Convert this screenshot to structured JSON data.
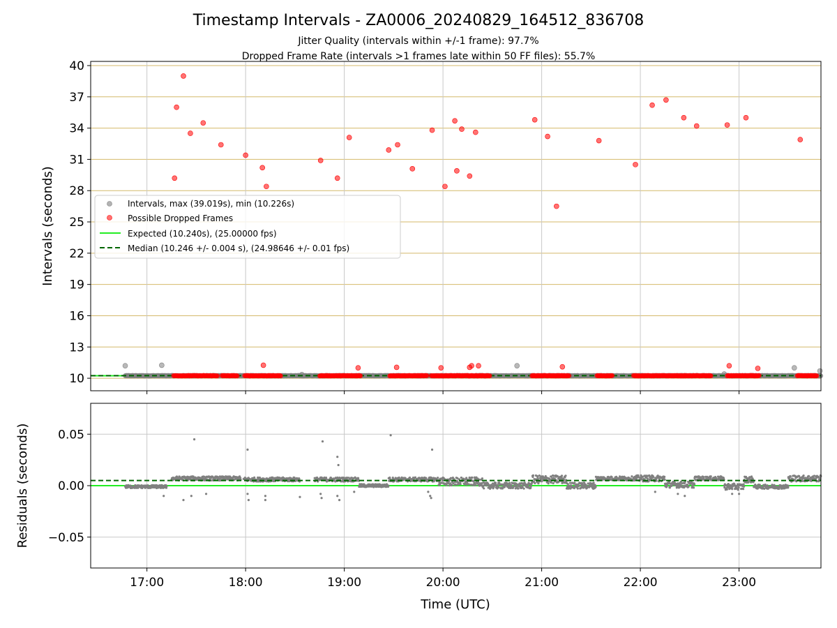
{
  "title": "Timestamp Intervals - ZA0006_20240829_164512_836708",
  "subtitle_lines": [
    "Jitter Quality (intervals within +/-1 frame): 97.7%",
    "Dropped Frame Rate (intervals >1 frames late within 50 FF files): 55.7%"
  ],
  "x_ticks": [
    "17:00",
    "18:00",
    "19:00",
    "20:00",
    "21:00",
    "22:00",
    "23:00"
  ],
  "x_range_hours": [
    16.43,
    23.83
  ],
  "xlabel": "Time (UTC)",
  "colors": {
    "intervals": "#808080",
    "dropped": "#ff0000",
    "expected": "#22ee22",
    "median": "#006400",
    "hgrid_top": "#d4b96a",
    "grid": "#c8c8c8"
  },
  "chart_data": [
    {
      "type": "scatter",
      "panel": "top",
      "ylabel": "Intervals (seconds)",
      "ylim": [
        8.8,
        40.4
      ],
      "y_ticks": [
        10,
        13,
        16,
        19,
        22,
        25,
        28,
        31,
        34,
        37,
        40
      ],
      "legend_placement": "center-left",
      "legend": [
        "Intervals, max (39.019s), min (10.226s)",
        "Possible Dropped Frames",
        "Expected (10.240s), (25.00000 fps)",
        "Median (10.246 +/- 0.004 s), (24.98646 +/- 0.01 fps)"
      ],
      "expected_value": 10.24,
      "median_value": 10.246,
      "baseline_interval": 10.24,
      "interval_outliers": [
        [
          16.78,
          11.2
        ],
        [
          17.15,
          11.25
        ],
        [
          18.57,
          10.35
        ],
        [
          20.75,
          11.2
        ],
        [
          22.85,
          10.4
        ],
        [
          23.56,
          11.0
        ],
        [
          23.82,
          10.7
        ]
      ],
      "dropped_points": [
        [
          17.28,
          29.2
        ],
        [
          17.3,
          36.0
        ],
        [
          17.37,
          39.0
        ],
        [
          17.44,
          33.5
        ],
        [
          17.57,
          34.5
        ],
        [
          17.75,
          32.4
        ],
        [
          18.0,
          31.4
        ],
        [
          18.17,
          30.2
        ],
        [
          18.21,
          28.4
        ],
        [
          18.18,
          11.25
        ],
        [
          18.76,
          30.9
        ],
        [
          18.93,
          29.2
        ],
        [
          19.05,
          33.1
        ],
        [
          19.14,
          11.0
        ],
        [
          19.45,
          31.9
        ],
        [
          19.54,
          32.4
        ],
        [
          19.53,
          11.05
        ],
        [
          19.69,
          30.1
        ],
        [
          19.89,
          33.8
        ],
        [
          19.98,
          11.0
        ],
        [
          20.02,
          28.4
        ],
        [
          20.12,
          34.7
        ],
        [
          20.14,
          29.9
        ],
        [
          20.19,
          33.9
        ],
        [
          20.27,
          29.4
        ],
        [
          20.27,
          11.05
        ],
        [
          20.29,
          11.2
        ],
        [
          20.33,
          33.6
        ],
        [
          20.36,
          11.2
        ],
        [
          20.93,
          34.8
        ],
        [
          21.06,
          33.2
        ],
        [
          21.15,
          26.5
        ],
        [
          21.21,
          11.1
        ],
        [
          21.58,
          32.8
        ],
        [
          21.95,
          30.5
        ],
        [
          22.12,
          36.2
        ],
        [
          22.26,
          36.7
        ],
        [
          22.44,
          35.0
        ],
        [
          22.57,
          34.2
        ],
        [
          22.88,
          34.3
        ],
        [
          22.9,
          11.2
        ],
        [
          23.07,
          35.0
        ],
        [
          23.19,
          10.95
        ],
        [
          23.62,
          32.9
        ]
      ],
      "dropped_baseline_ranges": [
        [
          17.27,
          17.72
        ],
        [
          17.76,
          17.92
        ],
        [
          17.99,
          18.36
        ],
        [
          18.75,
          19.17
        ],
        [
          19.46,
          19.84
        ],
        [
          19.88,
          20.48
        ],
        [
          20.9,
          21.28
        ],
        [
          21.56,
          21.72
        ],
        [
          21.93,
          22.72
        ],
        [
          22.88,
          23.21
        ],
        [
          23.59,
          23.79
        ]
      ]
    },
    {
      "type": "scatter",
      "panel": "bottom",
      "ylabel": "Residuals (seconds)",
      "ylim": [
        -0.08,
        0.08
      ],
      "y_ticks": [
        0.05,
        0.0,
        -0.05
      ],
      "y_tick_labels": [
        "0.05",
        "0.00",
        "−0.05"
      ],
      "expected_value": 0.0,
      "median_value": 0.005,
      "segments": [
        {
          "x": [
            16.78,
            17.2
          ],
          "level": -0.001,
          "spread": 0.0015
        },
        {
          "x": [
            17.25,
            17.95
          ],
          "level": 0.007,
          "spread": 0.002
        },
        {
          "x": [
            17.98,
            18.55
          ],
          "level": 0.006,
          "spread": 0.002
        },
        {
          "x": [
            18.7,
            19.15
          ],
          "level": 0.006,
          "spread": 0.002
        },
        {
          "x": [
            19.15,
            19.45
          ],
          "level": 0.0,
          "spread": 0.0015
        },
        {
          "x": [
            19.45,
            19.95
          ],
          "level": 0.006,
          "spread": 0.002
        },
        {
          "x": [
            19.95,
            20.4
          ],
          "level": 0.004,
          "spread": 0.004
        },
        {
          "x": [
            20.4,
            20.9
          ],
          "level": 0.0,
          "spread": 0.003
        },
        {
          "x": [
            20.9,
            21.25
          ],
          "level": 0.006,
          "spread": 0.004
        },
        {
          "x": [
            21.25,
            21.55
          ],
          "level": 0.0,
          "spread": 0.003
        },
        {
          "x": [
            21.55,
            21.95
          ],
          "level": 0.007,
          "spread": 0.002
        },
        {
          "x": [
            21.95,
            22.25
          ],
          "level": 0.007,
          "spread": 0.003
        },
        {
          "x": [
            22.25,
            22.55
          ],
          "level": 0.001,
          "spread": 0.003
        },
        {
          "x": [
            22.55,
            22.85
          ],
          "level": 0.007,
          "spread": 0.002
        },
        {
          "x": [
            22.85,
            23.05
          ],
          "level": -0.001,
          "spread": 0.003
        },
        {
          "x": [
            23.05,
            23.15
          ],
          "level": 0.006,
          "spread": 0.003
        },
        {
          "x": [
            23.15,
            23.5
          ],
          "level": -0.001,
          "spread": 0.002
        },
        {
          "x": [
            23.5,
            23.83
          ],
          "level": 0.007,
          "spread": 0.003
        }
      ],
      "outliers": [
        [
          17.48,
          0.045
        ],
        [
          18.02,
          0.035
        ],
        [
          18.78,
          0.043
        ],
        [
          18.93,
          0.028
        ],
        [
          18.94,
          0.02
        ],
        [
          19.47,
          0.049
        ],
        [
          19.89,
          0.035
        ],
        [
          17.17,
          -0.01
        ],
        [
          17.37,
          -0.014
        ],
        [
          17.45,
          -0.01
        ],
        [
          17.6,
          -0.008
        ],
        [
          18.02,
          -0.008
        ],
        [
          18.03,
          -0.014
        ],
        [
          18.2,
          -0.01
        ],
        [
          18.2,
          -0.014
        ],
        [
          18.55,
          -0.011
        ],
        [
          18.76,
          -0.008
        ],
        [
          18.77,
          -0.012
        ],
        [
          18.93,
          -0.01
        ],
        [
          18.95,
          -0.014
        ],
        [
          19.1,
          -0.006
        ],
        [
          19.85,
          -0.006
        ],
        [
          19.87,
          -0.01
        ],
        [
          19.88,
          -0.012
        ],
        [
          22.15,
          -0.006
        ],
        [
          22.38,
          -0.008
        ],
        [
          22.45,
          -0.01
        ],
        [
          22.93,
          -0.008
        ],
        [
          23.0,
          -0.008
        ]
      ]
    }
  ]
}
